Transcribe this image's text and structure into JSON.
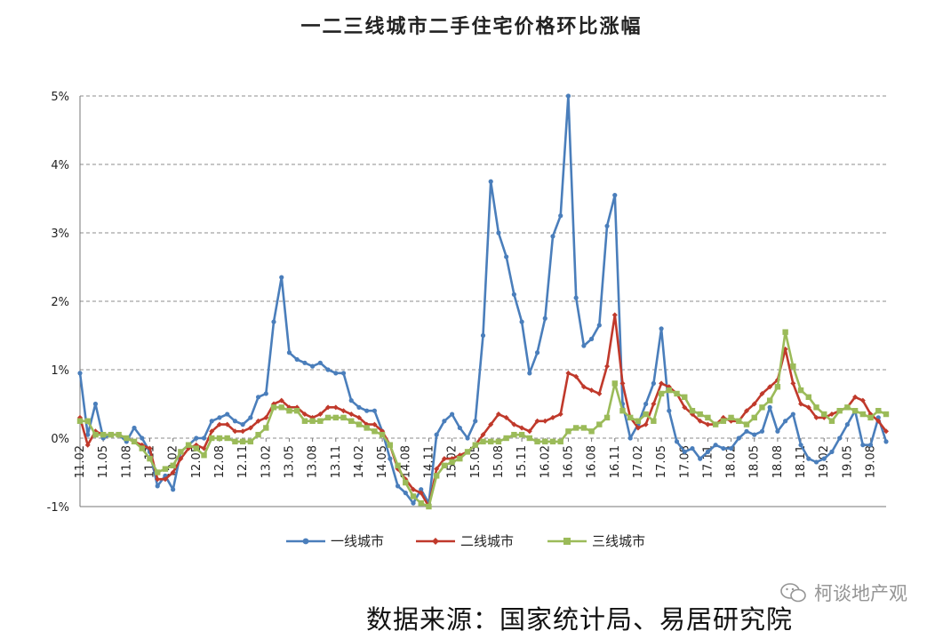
{
  "chart_data": {
    "type": "line",
    "title": "一二三线城市二手住宅价格环比涨幅",
    "xlabel": "",
    "ylabel": "",
    "ylim": [
      -1,
      5
    ],
    "yticks": [
      "-1%",
      "0%",
      "1%",
      "2%",
      "3%",
      "4%",
      "5%"
    ],
    "x_tick_labels": [
      "11.02",
      "11.05",
      "11.08",
      "11.11",
      "12.02",
      "12.05",
      "12.08",
      "12.11",
      "13.02",
      "13.05",
      "13.08",
      "13.11",
      "14.02",
      "14.05",
      "14.08",
      "14.11",
      "15.02",
      "15.05",
      "15.08",
      "15.11",
      "16.02",
      "16.05",
      "16.08",
      "16.11",
      "17.02",
      "17.05",
      "17.08",
      "17.11",
      "18.02",
      "18.05",
      "18.08",
      "18.11",
      "19.02",
      "19.05",
      "19.08"
    ],
    "x_start": "2011-02",
    "x_end": "2019-08",
    "grid": "horizontal dashed",
    "legend_position": "bottom",
    "series": [
      {
        "name": "一线城市",
        "color": "#4a7ebb",
        "marker": "circle",
        "values": [
          0.95,
          0.05,
          0.5,
          0.0,
          0.05,
          0.05,
          -0.05,
          0.15,
          0.0,
          -0.2,
          -0.7,
          -0.55,
          -0.75,
          -0.2,
          -0.1,
          0.0,
          0.0,
          0.25,
          0.3,
          0.35,
          0.25,
          0.2,
          0.3,
          0.6,
          0.65,
          1.7,
          2.35,
          1.25,
          1.15,
          1.1,
          1.05,
          1.1,
          1.0,
          0.95,
          0.95,
          0.55,
          0.45,
          0.4,
          0.4,
          0.1,
          -0.3,
          -0.7,
          -0.8,
          -0.95,
          -0.75,
          -0.95,
          0.05,
          0.25,
          0.35,
          0.15,
          0.0,
          0.25,
          1.5,
          3.75,
          3.0,
          2.65,
          2.1,
          1.7,
          0.95,
          1.25,
          1.75,
          2.95,
          3.25,
          5.0,
          2.05,
          1.35,
          1.45,
          1.65,
          3.1,
          3.55,
          0.5,
          0.0,
          0.2,
          0.5,
          0.8,
          1.6,
          0.4,
          -0.05,
          -0.2,
          -0.15,
          -0.3,
          -0.2,
          -0.1,
          -0.15,
          -0.15,
          0.0,
          0.1,
          0.05,
          0.1,
          0.45,
          0.1,
          0.25,
          0.35,
          -0.1,
          -0.3,
          -0.35,
          -0.3,
          -0.2,
          0.0,
          0.2,
          0.4,
          -0.1,
          -0.1,
          0.3,
          -0.05
        ]
      },
      {
        "name": "二线城市",
        "color": "#c0392b",
        "marker": "diamond",
        "values": [
          0.3,
          -0.1,
          0.1,
          0.05,
          0.05,
          0.05,
          0.0,
          -0.05,
          -0.1,
          -0.15,
          -0.6,
          -0.6,
          -0.5,
          -0.3,
          -0.15,
          -0.1,
          -0.15,
          0.1,
          0.2,
          0.2,
          0.1,
          0.1,
          0.15,
          0.25,
          0.3,
          0.5,
          0.55,
          0.45,
          0.45,
          0.35,
          0.3,
          0.35,
          0.45,
          0.45,
          0.4,
          0.35,
          0.3,
          0.2,
          0.2,
          0.1,
          -0.1,
          -0.45,
          -0.6,
          -0.75,
          -0.8,
          -1.0,
          -0.45,
          -0.3,
          -0.3,
          -0.25,
          -0.2,
          -0.1,
          0.05,
          0.2,
          0.35,
          0.3,
          0.2,
          0.15,
          0.1,
          0.25,
          0.25,
          0.3,
          0.35,
          0.95,
          0.9,
          0.75,
          0.7,
          0.65,
          1.05,
          1.8,
          0.8,
          0.3,
          0.15,
          0.2,
          0.5,
          0.8,
          0.75,
          0.65,
          0.45,
          0.35,
          0.25,
          0.2,
          0.2,
          0.3,
          0.25,
          0.25,
          0.4,
          0.5,
          0.65,
          0.75,
          0.85,
          1.3,
          0.8,
          0.5,
          0.45,
          0.3,
          0.3,
          0.35,
          0.4,
          0.45,
          0.6,
          0.55,
          0.35,
          0.25,
          0.1
        ]
      },
      {
        "name": "三线城市",
        "color": "#9bbb59",
        "marker": "square",
        "values": [
          0.25,
          0.25,
          0.05,
          0.05,
          0.05,
          0.05,
          0.0,
          -0.05,
          -0.15,
          -0.3,
          -0.5,
          -0.45,
          -0.4,
          -0.2,
          -0.1,
          -0.15,
          -0.25,
          0.0,
          0.0,
          0.0,
          -0.05,
          -0.05,
          -0.05,
          0.05,
          0.15,
          0.45,
          0.45,
          0.4,
          0.4,
          0.25,
          0.25,
          0.25,
          0.3,
          0.3,
          0.3,
          0.25,
          0.2,
          0.15,
          0.1,
          0.05,
          -0.1,
          -0.4,
          -0.65,
          -0.85,
          -0.95,
          -1.0,
          -0.55,
          -0.4,
          -0.35,
          -0.3,
          -0.2,
          -0.1,
          -0.05,
          -0.05,
          -0.05,
          0.0,
          0.05,
          0.05,
          0.0,
          -0.05,
          -0.05,
          -0.05,
          -0.05,
          0.1,
          0.15,
          0.15,
          0.1,
          0.2,
          0.3,
          0.8,
          0.4,
          0.3,
          0.25,
          0.35,
          0.25,
          0.65,
          0.7,
          0.65,
          0.6,
          0.4,
          0.35,
          0.3,
          0.2,
          0.25,
          0.3,
          0.25,
          0.2,
          0.3,
          0.45,
          0.55,
          0.75,
          1.55,
          1.05,
          0.7,
          0.6,
          0.45,
          0.35,
          0.25,
          0.4,
          0.45,
          0.4,
          0.35,
          0.3,
          0.4,
          0.35
        ]
      }
    ]
  },
  "watermark": {
    "text": "柯谈地产观",
    "icon": "wechat-icon"
  },
  "source_note": "数据来源：国家统计局、易居研究院"
}
